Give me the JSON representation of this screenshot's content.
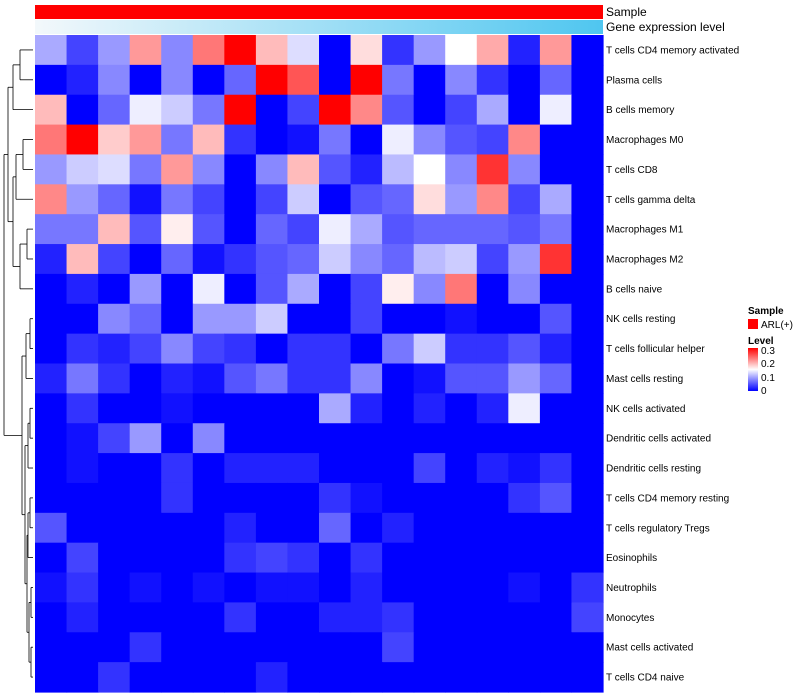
{
  "chart_data": {
    "type": "heatmap",
    "title": "",
    "annotations": [
      {
        "name": "Sample",
        "color": "#ff0000"
      },
      {
        "name": "Gene expression level",
        "gradient": [
          "#f3f8fb",
          "#4fc6f0"
        ]
      }
    ],
    "rows": [
      "T cells CD4 memory activated",
      "Plasma cells",
      "B cells memory",
      "Macrophages M0",
      "T cells CD8",
      "T cells gamma delta",
      "Macrophages M1",
      "Macrophages M2",
      "B cells naive",
      "NK cells resting",
      "T cells follicular helper",
      "Mast cells resting",
      "NK cells activated",
      "Dendritic cells activated",
      "Dendritic cells resting",
      "T cells CD4 memory resting",
      "T cells regulatory  Tregs",
      "Eosinophils",
      "Neutrophils",
      "Monocytes",
      "Mast cells activated",
      "T cells CD4 naive"
    ],
    "n_columns": 18,
    "values": [
      [
        0.1,
        0.04,
        0.09,
        0.21,
        0.08,
        0.23,
        0.3,
        0.19,
        0.13,
        0.0,
        0.17,
        0.03,
        0.09,
        0.15,
        0.2,
        0.02,
        0.21,
        0.0
      ],
      [
        0.0,
        0.02,
        0.08,
        0.0,
        0.08,
        0.0,
        0.06,
        0.3,
        0.25,
        0.0,
        0.3,
        0.07,
        0.0,
        0.08,
        0.03,
        0.0,
        0.06,
        0.0
      ],
      [
        0.19,
        0.0,
        0.06,
        0.14,
        0.12,
        0.07,
        0.3,
        0.0,
        0.04,
        0.3,
        0.22,
        0.05,
        0.0,
        0.04,
        0.1,
        0.0,
        0.14,
        0.0
      ],
      [
        0.23,
        0.3,
        0.18,
        0.21,
        0.07,
        0.19,
        0.03,
        0.0,
        0.01,
        0.07,
        0.0,
        0.14,
        0.08,
        0.05,
        0.04,
        0.22,
        0.0,
        0.0
      ],
      [
        0.09,
        0.12,
        0.13,
        0.07,
        0.21,
        0.08,
        0.0,
        0.08,
        0.19,
        0.05,
        0.02,
        0.11,
        0.15,
        0.08,
        0.27,
        0.08,
        0.0,
        0.0
      ],
      [
        0.22,
        0.09,
        0.06,
        0.01,
        0.07,
        0.04,
        0.0,
        0.04,
        0.12,
        0.0,
        0.05,
        0.06,
        0.17,
        0.09,
        0.22,
        0.04,
        0.1,
        0.0
      ],
      [
        0.07,
        0.07,
        0.19,
        0.05,
        0.16,
        0.05,
        0.0,
        0.06,
        0.04,
        0.14,
        0.1,
        0.05,
        0.06,
        0.06,
        0.06,
        0.05,
        0.07,
        0.0
      ],
      [
        0.02,
        0.19,
        0.04,
        0.0,
        0.06,
        0.01,
        0.03,
        0.05,
        0.06,
        0.12,
        0.08,
        0.06,
        0.11,
        0.12,
        0.04,
        0.09,
        0.27,
        0.0
      ],
      [
        0.0,
        0.02,
        0.0,
        0.09,
        0.0,
        0.14,
        0.0,
        0.05,
        0.1,
        0.0,
        0.04,
        0.16,
        0.08,
        0.23,
        0.0,
        0.08,
        0.0,
        0.0
      ],
      [
        0.0,
        0.0,
        0.08,
        0.06,
        0.0,
        0.09,
        0.09,
        0.12,
        0.0,
        0.0,
        0.04,
        0.0,
        0.0,
        0.01,
        0.0,
        0.0,
        0.05,
        0.0
      ],
      [
        0.0,
        0.03,
        0.02,
        0.04,
        0.08,
        0.04,
        0.03,
        0.0,
        0.03,
        0.03,
        0.0,
        0.07,
        0.12,
        0.03,
        0.03,
        0.05,
        0.02,
        0.0
      ],
      [
        0.02,
        0.07,
        0.03,
        0.0,
        0.02,
        0.01,
        0.05,
        0.07,
        0.03,
        0.03,
        0.08,
        0.0,
        0.01,
        0.05,
        0.05,
        0.09,
        0.06,
        0.0
      ],
      [
        0.0,
        0.03,
        0.0,
        0.0,
        0.01,
        0.0,
        0.0,
        0.0,
        0.0,
        0.1,
        0.02,
        0.0,
        0.02,
        0.0,
        0.02,
        0.14,
        0.0,
        0.0
      ],
      [
        0.0,
        0.01,
        0.04,
        0.09,
        0.0,
        0.08,
        0.0,
        0.0,
        0.0,
        0.0,
        0.0,
        0.0,
        0.0,
        0.0,
        0.0,
        0.0,
        0.0,
        0.0
      ],
      [
        0.0,
        0.01,
        0.0,
        0.0,
        0.03,
        0.0,
        0.02,
        0.02,
        0.02,
        0.0,
        0.0,
        0.0,
        0.04,
        0.0,
        0.02,
        0.01,
        0.03,
        0.0
      ],
      [
        0.0,
        0.0,
        0.0,
        0.0,
        0.03,
        0.0,
        0.0,
        0.0,
        0.0,
        0.03,
        0.01,
        0.0,
        0.0,
        0.0,
        0.0,
        0.03,
        0.05,
        0.0
      ],
      [
        0.05,
        0.0,
        0.0,
        0.0,
        0.0,
        0.0,
        0.02,
        0.0,
        0.0,
        0.06,
        0.0,
        0.02,
        0.0,
        0.0,
        0.0,
        0.0,
        0.0,
        0.0
      ],
      [
        0.0,
        0.04,
        0.0,
        0.0,
        0.0,
        0.0,
        0.03,
        0.04,
        0.03,
        0.0,
        0.03,
        0.0,
        0.0,
        0.0,
        0.0,
        0.0,
        0.0,
        0.0
      ],
      [
        0.01,
        0.03,
        0.0,
        0.01,
        0.0,
        0.01,
        0.0,
        0.01,
        0.01,
        0.0,
        0.02,
        0.0,
        0.0,
        0.0,
        0.0,
        0.01,
        0.0,
        0.03
      ],
      [
        0.0,
        0.02,
        0.0,
        0.0,
        0.0,
        0.0,
        0.03,
        0.0,
        0.0,
        0.02,
        0.02,
        0.03,
        0.0,
        0.0,
        0.0,
        0.0,
        0.0,
        0.04
      ],
      [
        0.0,
        0.0,
        0.0,
        0.03,
        0.0,
        0.0,
        0.0,
        0.0,
        0.0,
        0.0,
        0.0,
        0.04,
        0.0,
        0.0,
        0.0,
        0.0,
        0.0,
        0.0
      ],
      [
        0.0,
        0.0,
        0.03,
        0.0,
        0.0,
        0.0,
        0.0,
        0.02,
        0.0,
        0.0,
        0.0,
        0.0,
        0.0,
        0.0,
        0.0,
        0.0,
        0.0,
        0.0
      ]
    ],
    "color_scale": {
      "min": 0,
      "max": 0.3,
      "low": "#0000ff",
      "mid": "#ffffff",
      "high": "#ff0000"
    },
    "legend": {
      "sample_title": "Sample",
      "sample_entry": "ARL(+)",
      "sample_color": "#ff0000",
      "level_title": "Level",
      "level_ticks": [
        "0.3",
        "0.2",
        "0.1",
        "0"
      ]
    },
    "dendrogram": "row clustering tree on left"
  }
}
